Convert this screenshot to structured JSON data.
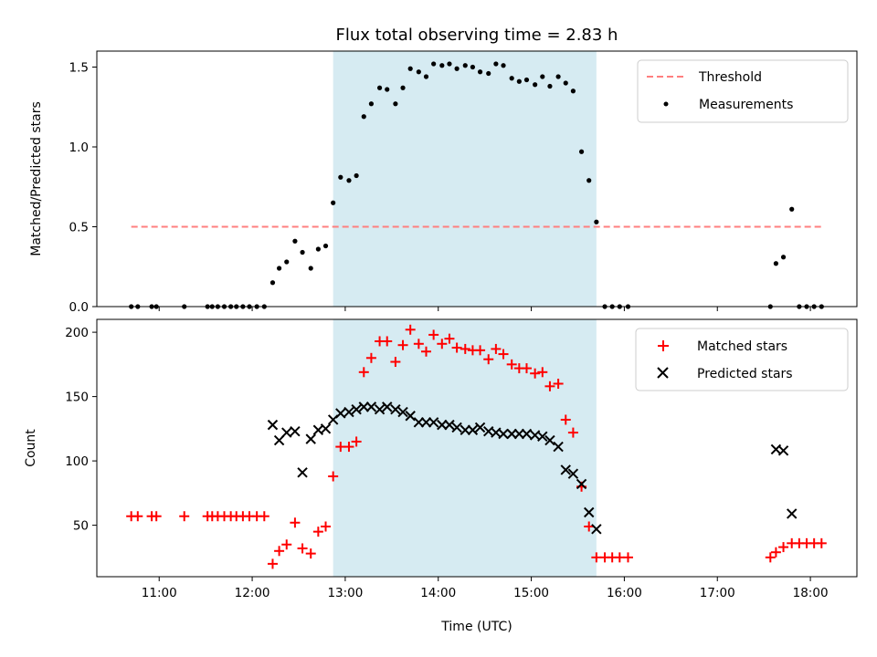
{
  "chart_data": [
    {
      "type": "scatter",
      "title": "Flux total observing time = 2.83 h",
      "xlabel": "",
      "ylabel": "Matched/Predicted stars",
      "xlim": [
        10.33,
        18.5
      ],
      "ylim": [
        0,
        1.6
      ],
      "yticks": [
        0.0,
        0.5,
        1.0,
        1.5
      ],
      "ytick_labels": [
        "0.0",
        "0.5",
        "1.0",
        "1.5"
      ],
      "xticks": [
        11,
        12,
        13,
        14,
        15,
        16,
        17,
        18
      ],
      "legend_position": "top-right",
      "shaded_region": {
        "x_start": 12.87,
        "x_end": 15.7,
        "color": "#add8e6"
      },
      "threshold": {
        "name": "Threshold",
        "value": 0.5,
        "x_range": [
          10.7,
          18.13
        ],
        "color": "#ff7f7f"
      },
      "series": [
        {
          "name": "Measurements",
          "color": "#000000",
          "points": [
            [
              10.7,
              0
            ],
            [
              10.77,
              0
            ],
            [
              10.92,
              0
            ],
            [
              10.97,
              0
            ],
            [
              11.27,
              0
            ],
            [
              11.52,
              0
            ],
            [
              11.57,
              0
            ],
            [
              11.63,
              0
            ],
            [
              11.7,
              0
            ],
            [
              11.77,
              0
            ],
            [
              11.83,
              0
            ],
            [
              11.9,
              0
            ],
            [
              11.97,
              0
            ],
            [
              12.05,
              0
            ],
            [
              12.13,
              0
            ],
            [
              12.22,
              0.15
            ],
            [
              12.29,
              0.24
            ],
            [
              12.37,
              0.28
            ],
            [
              12.46,
              0.41
            ],
            [
              12.54,
              0.34
            ],
            [
              12.63,
              0.24
            ],
            [
              12.71,
              0.36
            ],
            [
              12.79,
              0.38
            ],
            [
              12.87,
              0.65
            ],
            [
              12.95,
              0.81
            ],
            [
              13.04,
              0.79
            ],
            [
              13.12,
              0.82
            ],
            [
              13.2,
              1.19
            ],
            [
              13.28,
              1.27
            ],
            [
              13.37,
              1.37
            ],
            [
              13.45,
              1.36
            ],
            [
              13.54,
              1.27
            ],
            [
              13.62,
              1.37
            ],
            [
              13.7,
              1.49
            ],
            [
              13.79,
              1.47
            ],
            [
              13.87,
              1.44
            ],
            [
              13.95,
              1.52
            ],
            [
              14.04,
              1.51
            ],
            [
              14.12,
              1.52
            ],
            [
              14.2,
              1.49
            ],
            [
              14.29,
              1.51
            ],
            [
              14.37,
              1.5
            ],
            [
              14.45,
              1.47
            ],
            [
              14.54,
              1.46
            ],
            [
              14.62,
              1.52
            ],
            [
              14.7,
              1.51
            ],
            [
              14.79,
              1.43
            ],
            [
              14.87,
              1.41
            ],
            [
              14.95,
              1.42
            ],
            [
              15.04,
              1.39
            ],
            [
              15.12,
              1.44
            ],
            [
              15.2,
              1.38
            ],
            [
              15.29,
              1.44
            ],
            [
              15.37,
              1.4
            ],
            [
              15.45,
              1.35
            ],
            [
              15.54,
              0.97
            ],
            [
              15.62,
              0.79
            ],
            [
              15.7,
              0.53
            ],
            [
              15.79,
              0
            ],
            [
              15.87,
              0
            ],
            [
              15.95,
              0
            ],
            [
              16.04,
              0
            ],
            [
              17.57,
              0
            ],
            [
              17.63,
              0.27
            ],
            [
              17.71,
              0.31
            ],
            [
              17.8,
              0.61
            ],
            [
              17.88,
              0
            ],
            [
              17.96,
              0
            ],
            [
              18.04,
              0
            ],
            [
              18.12,
              0
            ]
          ]
        }
      ]
    },
    {
      "type": "scatter",
      "title": "",
      "xlabel": "Time (UTC)",
      "ylabel": "Count",
      "xlim": [
        10.33,
        18.5
      ],
      "ylim": [
        10,
        210
      ],
      "yticks": [
        50,
        100,
        150,
        200
      ],
      "ytick_labels": [
        "50",
        "100",
        "150",
        "200"
      ],
      "xticks": [
        11,
        12,
        13,
        14,
        15,
        16,
        17,
        18
      ],
      "xtick_labels": [
        "11:00",
        "12:00",
        "13:00",
        "14:00",
        "15:00",
        "16:00",
        "17:00",
        "18:00"
      ],
      "legend_position": "top-right",
      "shaded_region": {
        "x_start": 12.87,
        "x_end": 15.7,
        "color": "#add8e6"
      },
      "series": [
        {
          "name": "Matched stars",
          "marker": "plus",
          "color": "#ff0000",
          "points": [
            [
              10.7,
              57
            ],
            [
              10.77,
              57
            ],
            [
              10.92,
              57
            ],
            [
              10.97,
              57
            ],
            [
              11.27,
              57
            ],
            [
              11.52,
              57
            ],
            [
              11.57,
              57
            ],
            [
              11.63,
              57
            ],
            [
              11.7,
              57
            ],
            [
              11.77,
              57
            ],
            [
              11.83,
              57
            ],
            [
              11.9,
              57
            ],
            [
              11.97,
              57
            ],
            [
              12.05,
              57
            ],
            [
              12.13,
              57
            ],
            [
              12.22,
              20
            ],
            [
              12.29,
              30
            ],
            [
              12.37,
              35
            ],
            [
              12.46,
              52
            ],
            [
              12.54,
              32
            ],
            [
              12.63,
              28
            ],
            [
              12.71,
              45
            ],
            [
              12.79,
              49
            ],
            [
              12.87,
              88
            ],
            [
              12.95,
              111
            ],
            [
              13.04,
              111
            ],
            [
              13.12,
              115
            ],
            [
              13.2,
              169
            ],
            [
              13.28,
              180
            ],
            [
              13.37,
              193
            ],
            [
              13.45,
              193
            ],
            [
              13.54,
              177
            ],
            [
              13.62,
              190
            ],
            [
              13.7,
              202
            ],
            [
              13.79,
              191
            ],
            [
              13.87,
              185
            ],
            [
              13.95,
              198
            ],
            [
              14.04,
              191
            ],
            [
              14.12,
              195
            ],
            [
              14.2,
              188
            ],
            [
              14.29,
              187
            ],
            [
              14.37,
              186
            ],
            [
              14.45,
              186
            ],
            [
              14.54,
              179
            ],
            [
              14.62,
              187
            ],
            [
              14.7,
              183
            ],
            [
              14.79,
              175
            ],
            [
              14.87,
              172
            ],
            [
              14.95,
              172
            ],
            [
              15.04,
              168
            ],
            [
              15.12,
              169
            ],
            [
              15.2,
              158
            ],
            [
              15.29,
              160
            ],
            [
              15.37,
              132
            ],
            [
              15.45,
              122
            ],
            [
              15.54,
              80
            ],
            [
              15.62,
              49
            ],
            [
              15.7,
              25
            ],
            [
              15.79,
              25
            ],
            [
              15.87,
              25
            ],
            [
              15.95,
              25
            ],
            [
              16.04,
              25
            ],
            [
              17.57,
              25
            ],
            [
              17.63,
              29
            ],
            [
              17.71,
              33
            ],
            [
              17.8,
              36
            ],
            [
              17.88,
              36
            ],
            [
              17.96,
              36
            ],
            [
              18.04,
              36
            ],
            [
              18.12,
              36
            ]
          ]
        },
        {
          "name": "Predicted stars",
          "marker": "x",
          "color": "#000000",
          "points": [
            [
              12.22,
              128
            ],
            [
              12.29,
              116
            ],
            [
              12.37,
              122
            ],
            [
              12.46,
              123
            ],
            [
              12.54,
              91
            ],
            [
              12.63,
              117
            ],
            [
              12.71,
              124
            ],
            [
              12.79,
              125
            ],
            [
              12.87,
              132
            ],
            [
              12.95,
              137
            ],
            [
              13.04,
              138
            ],
            [
              13.12,
              140
            ],
            [
              13.2,
              142
            ],
            [
              13.28,
              142
            ],
            [
              13.37,
              140
            ],
            [
              13.45,
              142
            ],
            [
              13.54,
              140
            ],
            [
              13.62,
              138
            ],
            [
              13.7,
              135
            ],
            [
              13.79,
              130
            ],
            [
              13.87,
              130
            ],
            [
              13.95,
              130
            ],
            [
              14.04,
              128
            ],
            [
              14.12,
              128
            ],
            [
              14.2,
              126
            ],
            [
              14.29,
              124
            ],
            [
              14.37,
              124
            ],
            [
              14.45,
              126
            ],
            [
              14.54,
              123
            ],
            [
              14.62,
              122
            ],
            [
              14.7,
              121
            ],
            [
              14.79,
              121
            ],
            [
              14.87,
              121
            ],
            [
              14.95,
              121
            ],
            [
              15.04,
              120
            ],
            [
              15.12,
              119
            ],
            [
              15.2,
              116
            ],
            [
              15.29,
              111
            ],
            [
              15.37,
              93
            ],
            [
              15.45,
              90
            ],
            [
              15.54,
              82
            ],
            [
              15.62,
              60
            ],
            [
              15.7,
              47
            ],
            [
              17.63,
              109
            ],
            [
              17.71,
              108
            ],
            [
              17.8,
              59
            ]
          ]
        }
      ]
    }
  ]
}
